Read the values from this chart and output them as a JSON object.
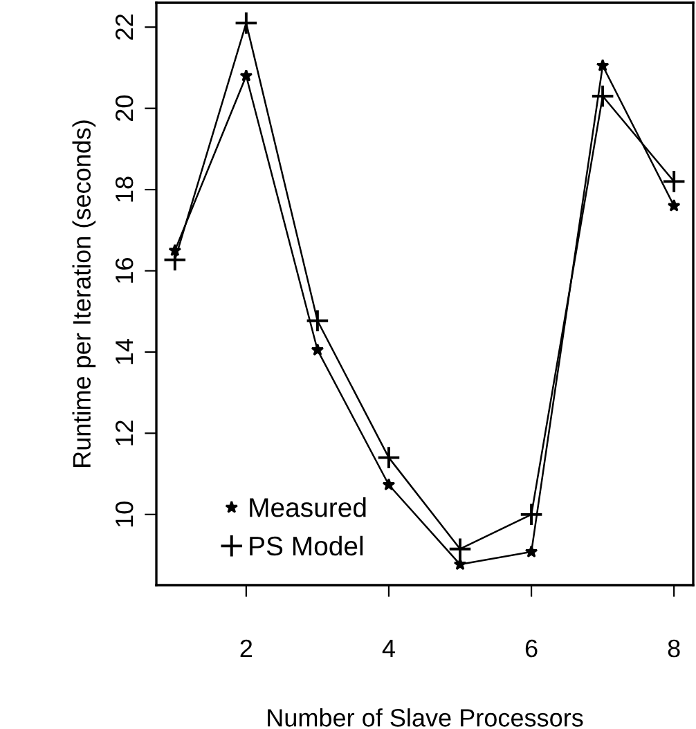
{
  "chart_data": {
    "type": "line",
    "xlabel": "Number of Slave Processors",
    "ylabel": "Runtime per Iteration (seconds)",
    "x": [
      1,
      2,
      3,
      4,
      5,
      6,
      7,
      8
    ],
    "series": [
      {
        "name": "Measured",
        "color": "#000000",
        "marker": "star",
        "values": [
          16.5,
          20.8,
          14.05,
          10.73,
          8.77,
          9.08,
          21.05,
          17.6
        ]
      },
      {
        "name": "PS Model",
        "color": "#000000",
        "marker": "cross",
        "values": [
          16.27,
          22.1,
          14.77,
          11.4,
          9.15,
          10.0,
          20.3,
          18.2
        ]
      }
    ],
    "xlim": [
      0.74,
      8.27
    ],
    "xticks": [
      2,
      4,
      6,
      8
    ],
    "ylim": [
      8.26,
      22.6
    ],
    "yticks": [
      10,
      12,
      14,
      16,
      18,
      20,
      22
    ],
    "grid": false,
    "legend": "bottom left",
    "line_style": "solid"
  }
}
